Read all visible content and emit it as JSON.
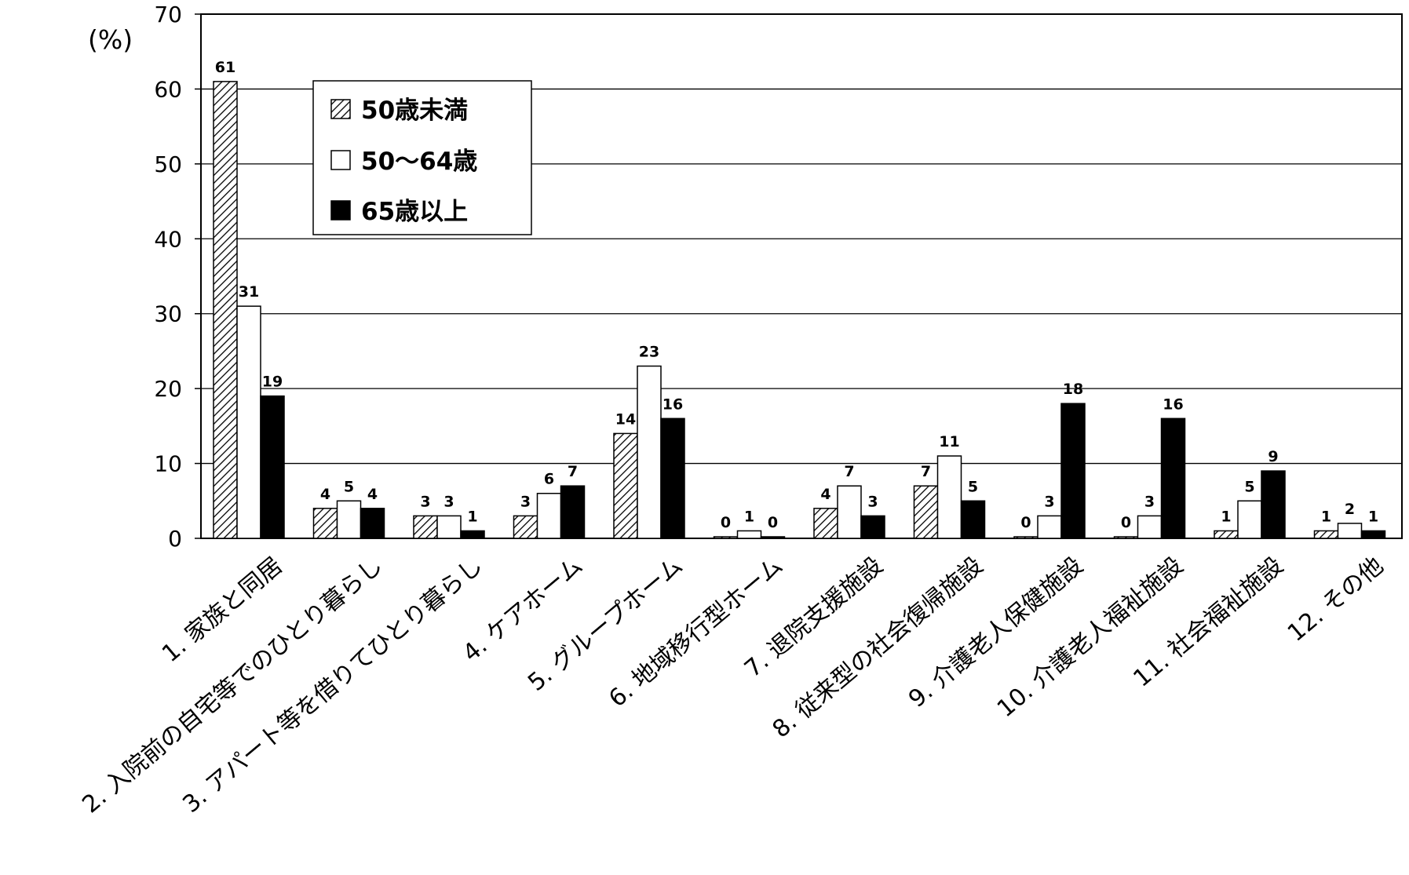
{
  "chart_data": {
    "type": "bar",
    "title": "",
    "xlabel": "",
    "ylabel": "(%)",
    "ylim": [
      0,
      70
    ],
    "yticks": [
      0,
      10,
      20,
      30,
      40,
      50,
      60,
      70
    ],
    "grid": true,
    "legend_position": "top-left",
    "categories": [
      "1. 家族と同居",
      "2. 入院前の自宅等でのひとり暮らし",
      "3. アパート等を借りてひとり暮らし",
      "4. ケアホーム",
      "5. グループホーム",
      "6. 地域移行型ホーム",
      "7. 退院支援施設",
      "8. 従来型の社会復帰施設",
      "9. 介護老人保健施設",
      "10. 介護老人福祉施設",
      "11. 社会福祉施設",
      "12. その他"
    ],
    "series": [
      {
        "name": "50歳未満",
        "pattern": "hatched",
        "values": [
          61,
          4,
          3,
          3,
          14,
          0,
          4,
          7,
          0,
          0,
          1,
          1
        ]
      },
      {
        "name": "50～64歳",
        "pattern": "white",
        "values": [
          31,
          5,
          3,
          6,
          23,
          1,
          7,
          11,
          3,
          3,
          5,
          2
        ]
      },
      {
        "name": "65歳以上",
        "pattern": "black",
        "values": [
          19,
          4,
          1,
          7,
          16,
          0,
          3,
          5,
          18,
          16,
          9,
          1
        ]
      }
    ]
  }
}
